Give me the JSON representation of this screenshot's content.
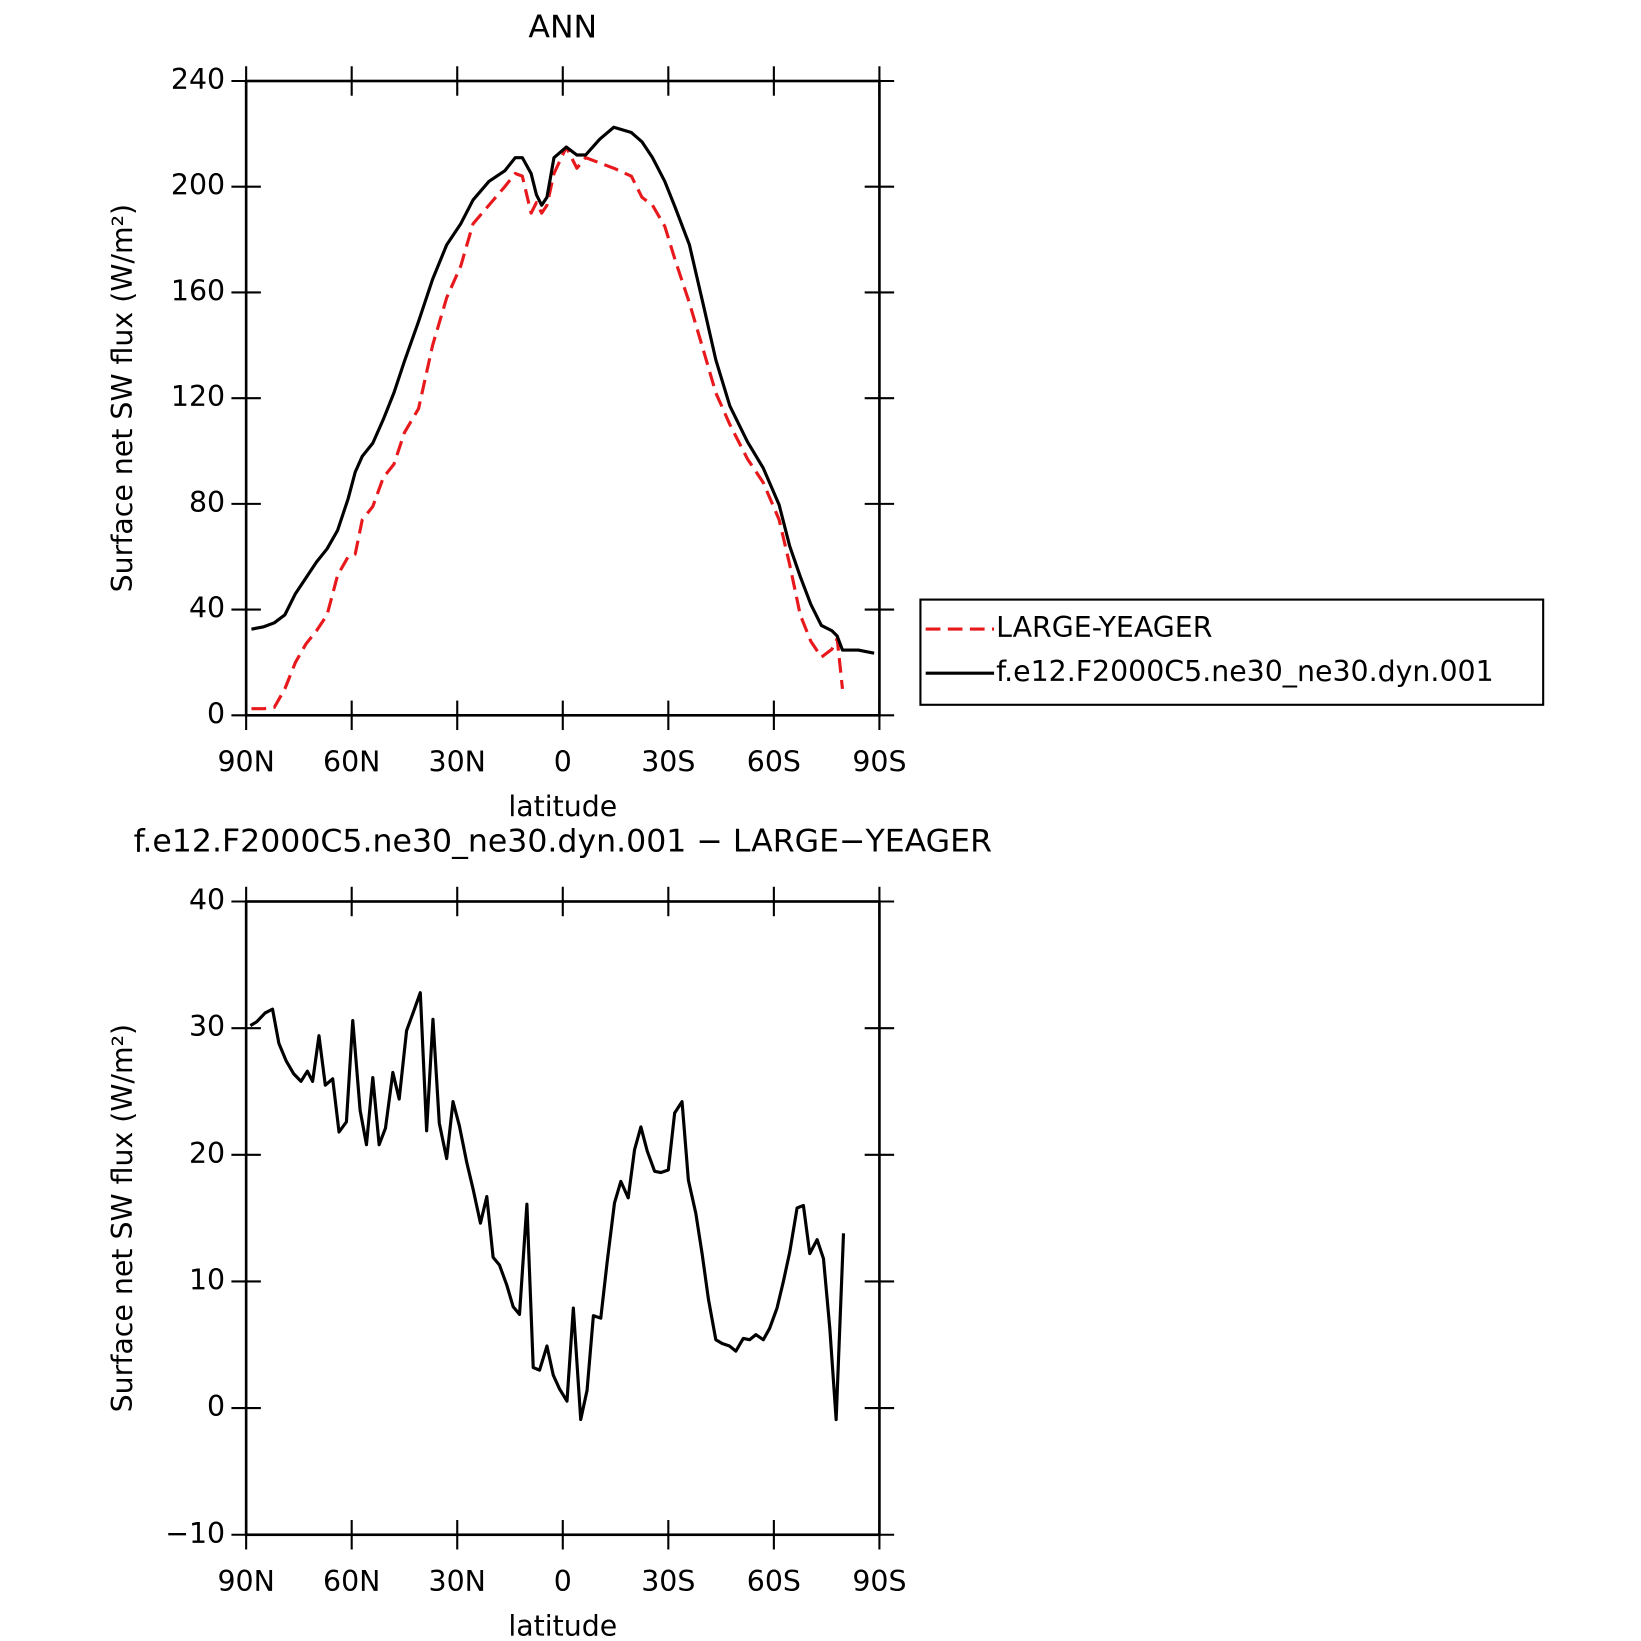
{
  "chart_data": [
    {
      "type": "line",
      "title": "ANN",
      "xlabel": "latitude",
      "ylabel": "Surface net SW flux (W/m²)",
      "x": [
        88.5,
        85,
        82,
        79,
        76,
        73,
        70,
        67,
        64,
        61,
        59,
        57,
        54,
        51,
        48,
        45,
        41,
        37,
        33,
        29,
        25.5,
        21,
        16.5,
        13.5,
        11.5,
        9,
        7.5,
        6,
        4.5,
        2.5,
        -1,
        -4,
        -6.5,
        -10.5,
        -14.5,
        -19.5,
        -22.5,
        -25.5,
        -29,
        -32,
        -36,
        -40,
        -43.5,
        -47.5,
        -52.5,
        -57,
        -61.5,
        -64.5,
        -67.5,
        -70.5,
        -73.5,
        -76.5,
        -78,
        -79.5,
        -84,
        -88.5
      ],
      "series": [
        {
          "name": "LARGE-YEAGER",
          "color": "#e8191c",
          "dash": true,
          "values": [
            2.5,
            2.5,
            3,
            10,
            20,
            27,
            32,
            38,
            53,
            60,
            61,
            74,
            79,
            90,
            95,
            107,
            116,
            140,
            158,
            170,
            186,
            193,
            200,
            205,
            204,
            190,
            194,
            190,
            193,
            205,
            215,
            207,
            211,
            209,
            207,
            204,
            196,
            193,
            185,
            172,
            156,
            138,
            122,
            110,
            97,
            88,
            74,
            57,
            38,
            28,
            22,
            25,
            29,
            10,
            null,
            null
          ]
        },
        {
          "name": "f.e12.F2000C5.ne30_ne30.dyn.001",
          "color": "#000000",
          "dash": false,
          "values": [
            32.6,
            33.5,
            35,
            38,
            46,
            52,
            58,
            63,
            70,
            82,
            92,
            98,
            103,
            112,
            122,
            134,
            149,
            165,
            178,
            186,
            195,
            202,
            206,
            211,
            211,
            205,
            197,
            193,
            196,
            211,
            215,
            212,
            212,
            218,
            222.5,
            220.5,
            217,
            211,
            202,
            192,
            178,
            155,
            134.5,
            117,
            103.5,
            93.5,
            79.6,
            64,
            52.5,
            42,
            34,
            32,
            30,
            24.7,
            24.7,
            23.5
          ]
        }
      ],
      "xlim": [
        90,
        -90
      ],
      "xticks": [
        {
          "value": 90,
          "label": "90N"
        },
        {
          "value": 60,
          "label": "60N"
        },
        {
          "value": 30,
          "label": "30N"
        },
        0,
        {
          "value": -30,
          "label": "30S"
        },
        {
          "value": -60,
          "label": "60S"
        },
        {
          "value": -90,
          "label": "90S"
        }
      ],
      "ylim": [
        0,
        240
      ],
      "yticks": [
        0,
        40,
        80,
        120,
        160,
        200,
        240
      ],
      "legend": "right"
    },
    {
      "type": "line",
      "title": "f.e12.F2000C5.ne30_ne30.dyn.001 − LARGE−YEAGER",
      "xlabel": "latitude",
      "ylabel": "Surface net SW flux (W/m²)",
      "x": [
        88.8,
        87.0,
        84.6,
        82.5,
        80.7,
        78.6,
        76.5,
        74.4,
        72.6,
        71.1,
        69.3,
        67.5,
        65.4,
        63.6,
        61.5,
        59.7,
        57.6,
        55.8,
        54.0,
        52.2,
        50.4,
        48.3,
        46.5,
        44.4,
        42.3,
        40.5,
        38.7,
        36.9,
        35.1,
        33.0,
        31.2,
        29.4,
        27.3,
        25.5,
        23.4,
        21.6,
        19.8,
        18.0,
        15.9,
        14.1,
        12.3,
        10.2,
        8.4,
        6.6,
        4.5,
        2.7,
        0.9,
        -1.2,
        -3.0,
        -5.1,
        -6.9,
        -8.7,
        -10.8,
        -12.6,
        -14.7,
        -16.5,
        -18.6,
        -20.4,
        -22.2,
        -24.0,
        -26.1,
        -27.9,
        -30.0,
        -31.8,
        -33.9,
        -35.7,
        -37.8,
        -39.6,
        -41.4,
        -43.5,
        -45.3,
        -47.4,
        -49.2,
        -51.3,
        -53.1,
        -54.9,
        -57.0,
        -58.8,
        -60.9,
        -62.7,
        -64.5,
        -66.6,
        -68.4,
        -70.2,
        -72.3,
        -74.1,
        -75.9,
        -77.7,
        -79.8
      ],
      "values": [
        30.2,
        30.5,
        31.2,
        31.5,
        28.8,
        27.4,
        26.4,
        25.8,
        26.6,
        25.8,
        29.4,
        25.5,
        26,
        21.8,
        22.6,
        30.6,
        23.5,
        20.8,
        26.1,
        20.8,
        22.1,
        26.5,
        24.4,
        29.8,
        31.4,
        32.8,
        21.9,
        30.7,
        22.5,
        19.7,
        24.2,
        22.3,
        19.4,
        17.3,
        14.6,
        16.7,
        11.9,
        11.3,
        9.7,
        8,
        7.4,
        16.1,
        3.2,
        3,
        4.9,
        2.6,
        1.5,
        0.55,
        7.9,
        -0.9,
        1.4,
        7.3,
        7.1,
        11.5,
        16.2,
        17.9,
        16.6,
        20.4,
        22.2,
        20.3,
        18.7,
        18.6,
        18.8,
        23.3,
        24.2,
        18,
        15.4,
        12.2,
        8.6,
        5.4,
        5.1,
        4.9,
        4.5,
        5.5,
        5.4,
        5.8,
        5.4,
        6.3,
        7.9,
        10,
        12.3,
        15.8,
        16,
        12.2,
        13.3,
        11.8,
        6.3,
        -0.9,
        13.8
      ],
      "color": "#000000",
      "xlim": [
        90,
        -90
      ],
      "xticks": [
        {
          "value": 90,
          "label": "90N"
        },
        {
          "value": 60,
          "label": "60N"
        },
        {
          "value": 30,
          "label": "30N"
        },
        0,
        {
          "value": -30,
          "label": "30S"
        },
        {
          "value": -60,
          "label": "60S"
        },
        {
          "value": -90,
          "label": "90S"
        }
      ],
      "ylim": [
        -10,
        40
      ],
      "yticks": [
        {
          "value": -10,
          "label": "−10"
        },
        0,
        10,
        20,
        30,
        40
      ]
    }
  ]
}
